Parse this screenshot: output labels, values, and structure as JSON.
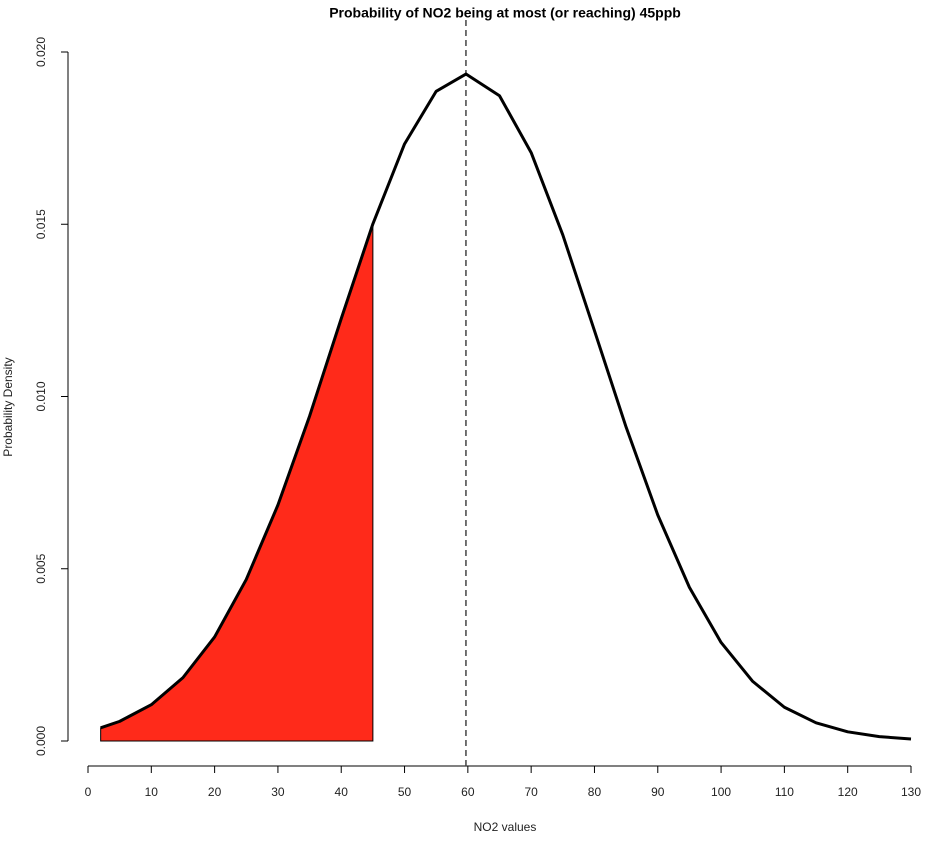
{
  "chart_data": {
    "type": "line",
    "title": "Probability of NO2 being at most (or reaching) 45ppb",
    "x_label": "NO2 values",
    "y_label": "Probability Density",
    "xlim": [
      0,
      130
    ],
    "xticks": [
      0,
      10,
      20,
      30,
      40,
      50,
      60,
      70,
      80,
      90,
      100,
      110,
      120,
      130
    ],
    "ylim": [
      0,
      0.02
    ],
    "yticks": [
      {
        "value": 0,
        "label": "0.000"
      },
      {
        "value": 0.005,
        "label": "0.005"
      },
      {
        "value": 0.01,
        "label": "0.010"
      },
      {
        "value": 0.015,
        "label": "0.015"
      },
      {
        "value": 0.02,
        "label": "0.020"
      }
    ],
    "series": [
      {
        "color": "#000000",
        "x": [
          2,
          5,
          10,
          15,
          20,
          25,
          30,
          35,
          40,
          45,
          50,
          55,
          59.7,
          65,
          70,
          75,
          80,
          85,
          90,
          95,
          100,
          105,
          110,
          115,
          120,
          125,
          130
        ],
        "values": [
          0.000383,
          0.00057,
          0.001053,
          0.00184,
          0.00302,
          0.00469,
          0.00685,
          0.00943,
          0.01226,
          0.01501,
          0.01733,
          0.01886,
          0.01936,
          0.01873,
          0.01708,
          0.01469,
          0.01191,
          0.00911,
          0.00656,
          0.00446,
          0.00286,
          0.00173,
          0.00098,
          0.000527,
          0.000267,
          0.000127,
          5.73e-05
        ]
      },
      {
        "color": "#ff2a1a",
        "fill": true,
        "x": [
          2,
          5,
          10,
          15,
          20,
          25,
          30,
          35,
          40,
          45
        ],
        "values": [
          0.000383,
          0.00057,
          0.001053,
          0.00184,
          0.00302,
          0.00469,
          0.00685,
          0.00943,
          0.01226,
          0.01501
        ]
      }
    ],
    "vline": {
      "x": 59.7,
      "dashed": true
    }
  }
}
